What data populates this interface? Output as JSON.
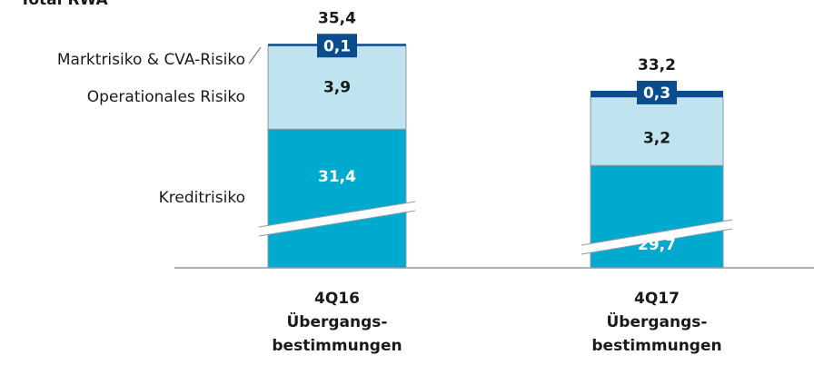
{
  "chart_data": {
    "type": "stacked_bar",
    "title": "Total RWA",
    "categories": [
      [
        "4Q16",
        "Übergangs-",
        "bestimmungen"
      ],
      [
        "4Q17",
        "Übergangs-",
        "bestimmungen"
      ]
    ],
    "series": [
      {
        "name": "Kreditrisiko",
        "color": "#00a9ce",
        "values": [
          31.4,
          29.7
        ],
        "value_labels": [
          "31,4",
          "29,7"
        ]
      },
      {
        "name": "Operationales Risiko",
        "color": "#bfe4f0",
        "values": [
          3.9,
          3.2
        ],
        "value_labels": [
          "3,9",
          "3,2"
        ]
      },
      {
        "name": "Marktrisiko & CVA-Risiko",
        "color": "#0b4d8c",
        "values": [
          0.1,
          0.3
        ],
        "value_labels": [
          "0,1",
          "0,3"
        ]
      }
    ],
    "totals": [
      35.4,
      33.2
    ],
    "total_labels": [
      "35,4",
      "33,2"
    ]
  }
}
